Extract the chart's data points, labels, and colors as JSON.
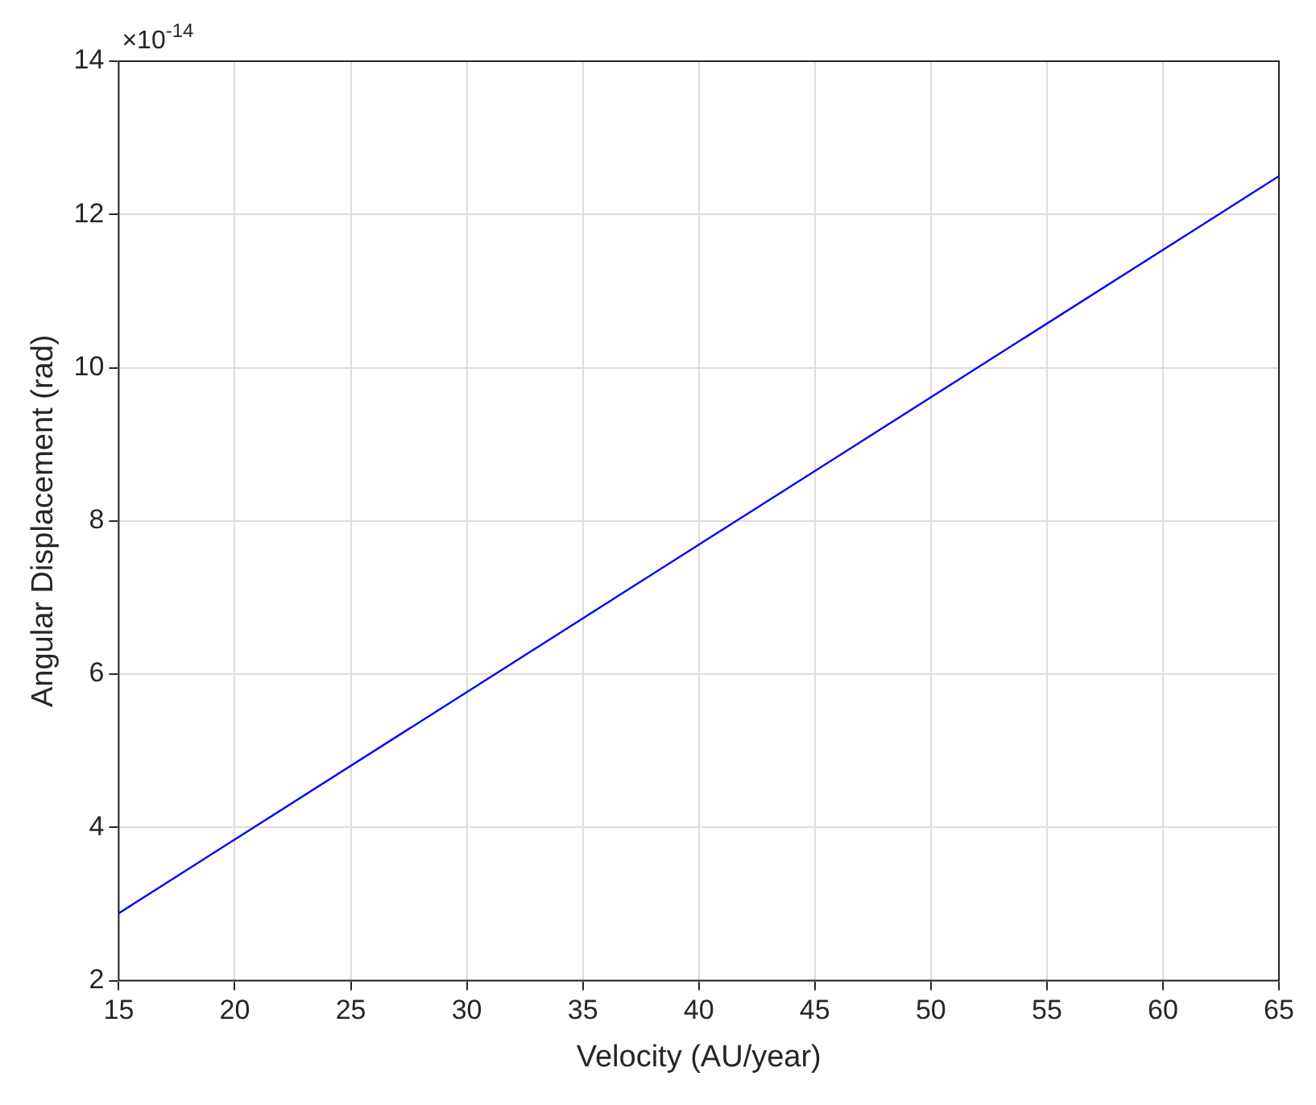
{
  "chart_data": {
    "type": "line",
    "xlabel": "Velocity (AU/year)",
    "ylabel": "Angular Displacement (rad)",
    "annotations": [
      "×10$^{-14}$"
    ],
    "x": [
      15,
      40,
      65
    ],
    "series": [
      {
        "color": "#0000ff",
        "values": [
          2.88,
          7.69,
          12.5
        ]
      }
    ],
    "xlim": [
      15,
      65
    ],
    "xticks": [
      15,
      20,
      25,
      30,
      35,
      40,
      45,
      50,
      55,
      60,
      65
    ],
    "ylim": [
      2,
      14
    ],
    "yticks": [
      2,
      4,
      6,
      8,
      10,
      12,
      14
    ],
    "grid": true,
    "legend": false,
    "marker": "none",
    "line_style": "solid"
  }
}
